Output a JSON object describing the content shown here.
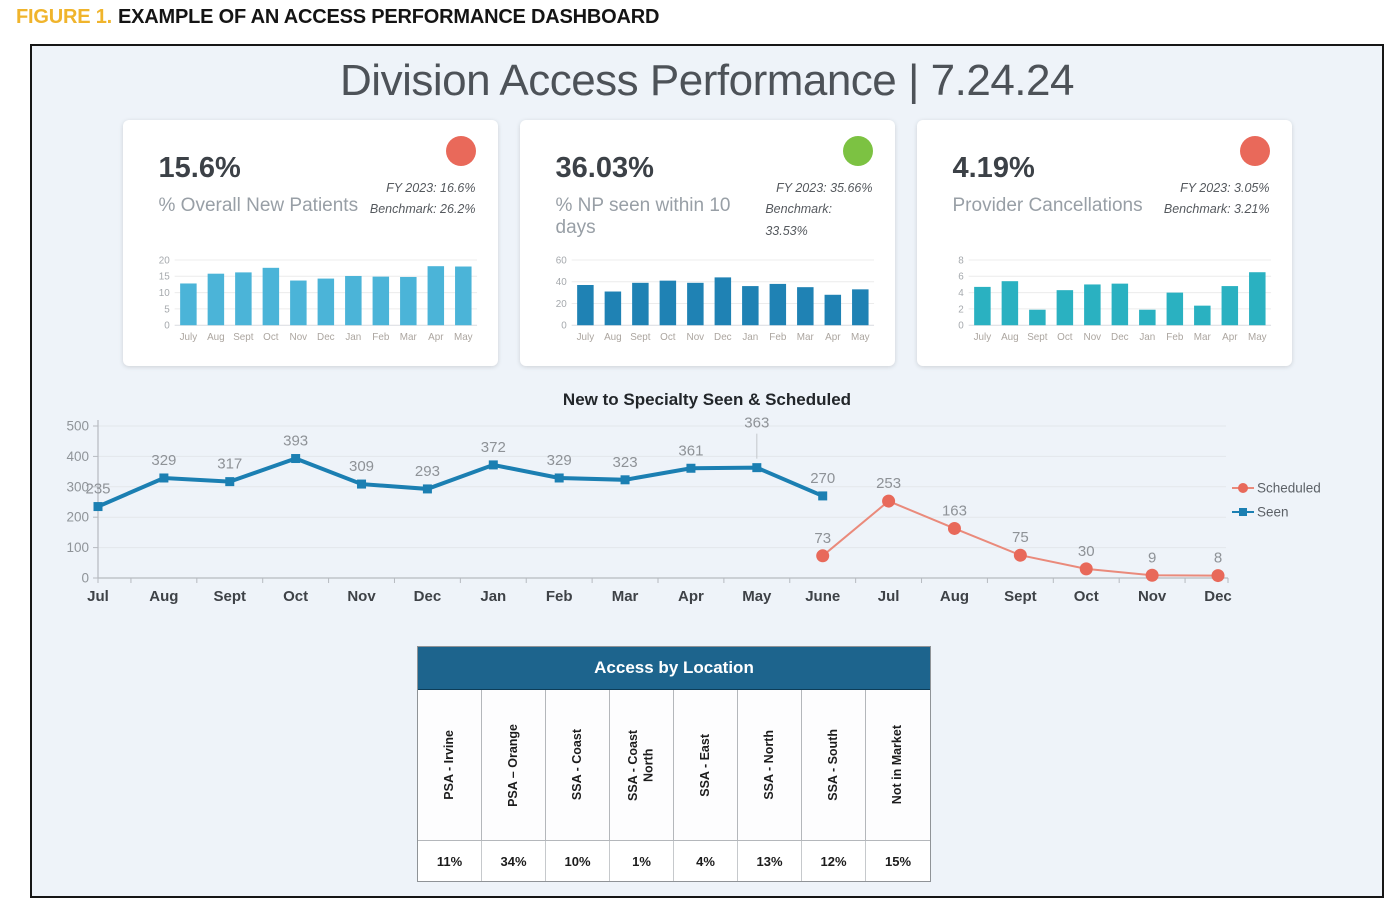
{
  "figure_caption": {
    "prefix": "FIGURE 1.",
    "title": "EXAMPLE OF AN ACCESS PERFORMANCE DASHBOARD",
    "prefix_color": "#f0b42c"
  },
  "dashboard_title": "Division Access Performance | 7.24.24",
  "kpi_cards": [
    {
      "value": "15.6%",
      "label": "% Overall New Patients",
      "fy": "FY 2023: 16.6%",
      "benchmark": "Benchmark: 26.2%",
      "status_color": "#e9695a"
    },
    {
      "value": "36.03%",
      "label": "% NP seen within 10 days",
      "fy": "FY 2023: 35.66%",
      "benchmark": "Benchmark: 33.53%",
      "status_color": "#7cc242"
    },
    {
      "value": "4.19%",
      "label": "Provider Cancellations",
      "fy": "FY 2023: 3.05%",
      "benchmark": "Benchmark: 3.21%",
      "status_color": "#e9695a"
    }
  ],
  "chart_data": [
    {
      "type": "bar",
      "title": "% Overall New Patients by month",
      "categories": [
        "July",
        "Aug",
        "Sept",
        "Oct",
        "Nov",
        "Dec",
        "Jan",
        "Feb",
        "Mar",
        "Apr",
        "May"
      ],
      "values": [
        12.8,
        15.8,
        16.2,
        17.6,
        13.7,
        14.3,
        15.1,
        14.9,
        14.8,
        18.1,
        18.0
      ],
      "ylim": [
        0,
        20
      ],
      "yticks": [
        0,
        5,
        10,
        15,
        20
      ],
      "bar_color": "#4bb4d8",
      "grid": true
    },
    {
      "type": "bar",
      "title": "% NP seen within 10 days by month",
      "categories": [
        "July",
        "Aug",
        "Sept",
        "Oct",
        "Nov",
        "Dec",
        "Jan",
        "Feb",
        "Mar",
        "Apr",
        "May"
      ],
      "values": [
        37,
        31,
        39,
        41,
        39,
        44,
        36,
        38,
        35,
        28,
        33
      ],
      "ylim": [
        0,
        60
      ],
      "yticks": [
        0,
        20,
        40,
        60
      ],
      "bar_color": "#1f82b4",
      "grid": true
    },
    {
      "type": "bar",
      "title": "Provider Cancellations by month",
      "categories": [
        "July",
        "Aug",
        "Sept",
        "Oct",
        "Nov",
        "Dec",
        "Jan",
        "Feb",
        "Mar",
        "Apr",
        "May"
      ],
      "values": [
        4.7,
        5.4,
        1.9,
        4.3,
        5.0,
        5.1,
        1.9,
        4.0,
        2.4,
        4.8,
        6.5
      ],
      "ylim": [
        0,
        8
      ],
      "yticks": [
        0,
        2,
        4,
        6,
        8
      ],
      "bar_color": "#2ab1c1",
      "grid": true
    },
    {
      "type": "line",
      "title": "New to Specialty Seen & Scheduled",
      "categories": [
        "Jul",
        "Aug",
        "Sept",
        "Oct",
        "Nov",
        "Dec",
        "Jan",
        "Feb",
        "Mar",
        "Apr",
        "May",
        "June",
        "Jul",
        "Aug",
        "Sept",
        "Oct",
        "Nov",
        "Dec"
      ],
      "ylim": [
        0,
        500
      ],
      "yticks": [
        0,
        100,
        200,
        300,
        400,
        500
      ],
      "grid": true,
      "legend_position": "right",
      "series": [
        {
          "name": "Scheduled",
          "color": "#e8695a",
          "line_color": "#ea8a7b",
          "marker": "circle",
          "x_start": 11,
          "values": [
            73,
            253,
            163,
            75,
            30,
            9,
            8
          ]
        },
        {
          "name": "Seen",
          "color": "#1b7fb2",
          "line_color": "#1b7fb2",
          "marker": "square",
          "x_start": 0,
          "values": [
            235,
            329,
            317,
            393,
            309,
            293,
            372,
            329,
            323,
            361,
            363,
            270
          ],
          "callout_index": 10
        }
      ]
    }
  ],
  "location_table": {
    "title": "Access by Location",
    "header_color": "#1d648d",
    "columns": [
      {
        "label": "PSA - Irvine",
        "value": "11%"
      },
      {
        "label": "PSA – Orange",
        "value": "34%"
      },
      {
        "label": "SSA - Coast",
        "value": "10%"
      },
      {
        "label": "SSA - Coast North",
        "value": "1%"
      },
      {
        "label": "SSA - East",
        "value": "4%"
      },
      {
        "label": "SSA - North",
        "value": "13%"
      },
      {
        "label": "SSA - South",
        "value": "12%"
      },
      {
        "label": "Not in Market",
        "value": "15%"
      }
    ]
  }
}
